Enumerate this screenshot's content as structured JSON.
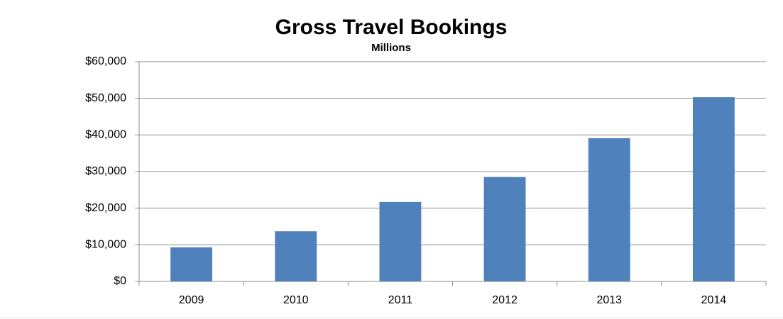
{
  "chart_data": {
    "type": "bar",
    "title": "Gross Travel Bookings",
    "subtitle": "Millions",
    "categories": [
      "2009",
      "2010",
      "2011",
      "2012",
      "2013",
      "2014"
    ],
    "values": [
      9300,
      13700,
      21700,
      28500,
      39100,
      50300
    ],
    "color": "#4f81bd",
    "ylim": [
      0,
      60000
    ],
    "yticks": [
      {
        "value": 0,
        "label": "$0"
      },
      {
        "value": 10000,
        "label": "$10,000"
      },
      {
        "value": 20000,
        "label": "$20,000"
      },
      {
        "value": 30000,
        "label": "$30,000"
      },
      {
        "value": 40000,
        "label": "$40,000"
      },
      {
        "value": 50000,
        "label": "$50,000"
      },
      {
        "value": 60000,
        "label": "$60,000"
      }
    ],
    "grid": true
  }
}
